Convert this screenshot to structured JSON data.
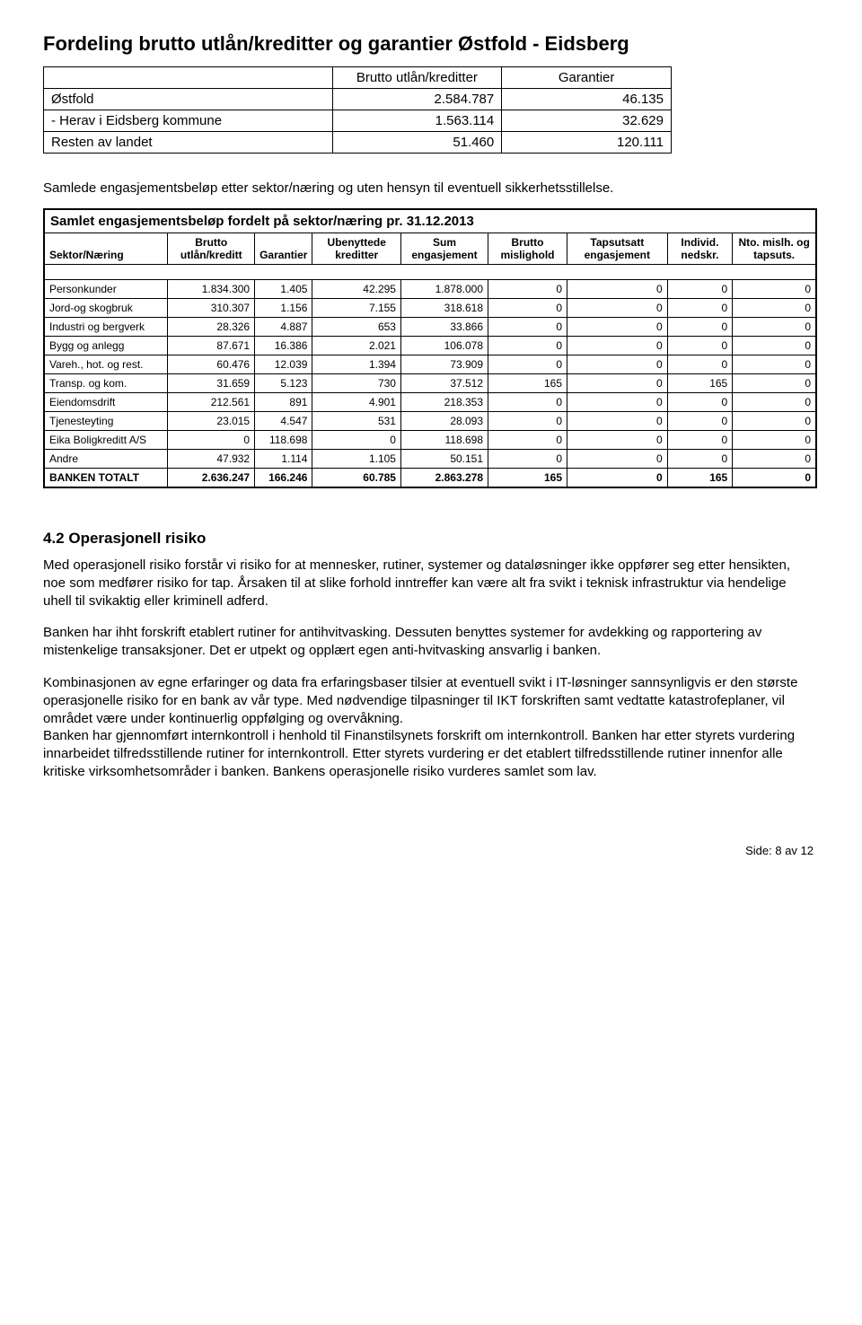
{
  "page_title": "Fordeling brutto utlån/kreditter og garantier Østfold - Eidsberg",
  "region_table": {
    "col_headers": [
      "",
      "Brutto utlån/kreditter",
      "Garantier"
    ],
    "rows": [
      {
        "label": "Østfold",
        "val1": "2.584.787",
        "val2": "46.135"
      },
      {
        "label": " - Herav i Eidsberg kommune",
        "val1": "1.563.114",
        "val2": "32.629"
      },
      {
        "label": "Resten av landet",
        "val1": "51.460",
        "val2": "120.111"
      }
    ]
  },
  "narrative_line": "Samlede engasjementsbeløp etter sektor/næring og uten hensyn til eventuell sikkerhetsstillelse.",
  "eng_heading": "Samlet  engasjementsbeløp fordelt på sektor/næring pr. 31.12.2013",
  "eng_table": {
    "columns": [
      "Sektor/Næring",
      "Brutto utlån/kreditt",
      "Garantier",
      "Ubenyttede kreditter",
      "Sum engasjement",
      "Brutto mislighold",
      "Tapsutsatt engasjement",
      "Individ. nedskr.",
      "Nto. mislh. og tapsuts."
    ],
    "rows": [
      [
        "Personkunder",
        "1.834.300",
        "1.405",
        "42.295",
        "1.878.000",
        "0",
        "0",
        "0",
        "0"
      ],
      [
        "Jord-og skogbruk",
        "310.307",
        "1.156",
        "7.155",
        "318.618",
        "0",
        "0",
        "0",
        "0"
      ],
      [
        "Industri og bergverk",
        "28.326",
        "4.887",
        "653",
        "33.866",
        "0",
        "0",
        "0",
        "0"
      ],
      [
        "Bygg og anlegg",
        "87.671",
        "16.386",
        "2.021",
        "106.078",
        "0",
        "0",
        "0",
        "0"
      ],
      [
        "Vareh., hot. og rest.",
        "60.476",
        "12.039",
        "1.394",
        "73.909",
        "0",
        "0",
        "0",
        "0"
      ],
      [
        "Transp. og kom.",
        "31.659",
        "5.123",
        "730",
        "37.512",
        "165",
        "0",
        "165",
        "0"
      ],
      [
        "Eiendomsdrift",
        "212.561",
        "891",
        "4.901",
        "218.353",
        "0",
        "0",
        "0",
        "0"
      ],
      [
        "Tjenesteyting",
        "23.015",
        "4.547",
        "531",
        "28.093",
        "0",
        "0",
        "0",
        "0"
      ],
      [
        "Eika Boligkreditt A/S",
        "0",
        "118.698",
        "0",
        "118.698",
        "0",
        "0",
        "0",
        "0"
      ],
      [
        "Andre",
        "47.932",
        "1.114",
        "1.105",
        "50.151",
        "0",
        "0",
        "0",
        "0"
      ]
    ],
    "total_row": [
      "BANKEN TOTALT",
      "2.636.247",
      "166.246",
      "60.785",
      "2.863.278",
      "165",
      "0",
      "165",
      "0"
    ]
  },
  "section_label": "4.2 Operasjonell risiko",
  "paragraphs": [
    "Med operasjonell risiko forstår vi risiko for at mennesker, rutiner, systemer og dataløsninger ikke oppfører seg etter hensikten, noe som medfører risiko for tap. Årsaken til at slike forhold inntreffer kan være alt fra svikt i teknisk infrastruktur via hendelige uhell til svikaktig eller kriminell adferd.",
    "Banken har ihht forskrift etablert rutiner for antihvitvasking. Dessuten benyttes systemer for avdekking og rapportering av mistenkelige transaksjoner. Det er utpekt og opplært egen anti-hvitvasking ansvarlig i banken.",
    "Kombinasjonen av egne erfaringer og data fra erfaringsbaser tilsier at eventuell svikt i IT-løsninger sannsynligvis er den største operasjonelle risiko for en bank av vår type. Med nødvendige tilpasninger til IKT forskriften samt vedtatte katastrofeplaner, vil området være under kontinuerlig oppfølging og overvåkning.\nBanken har gjennomført internkontroll i henhold til Finanstilsynets forskrift om internkontroll. Banken har etter styrets vurdering innarbeidet tilfredsstillende rutiner for internkontroll. Etter styrets vurdering er det etablert tilfredsstillende rutiner innenfor alle kritiske virksomhetsområder i banken. Bankens operasjonelle risiko vurderes samlet som lav."
  ],
  "footer": "Side: 8 av 12"
}
